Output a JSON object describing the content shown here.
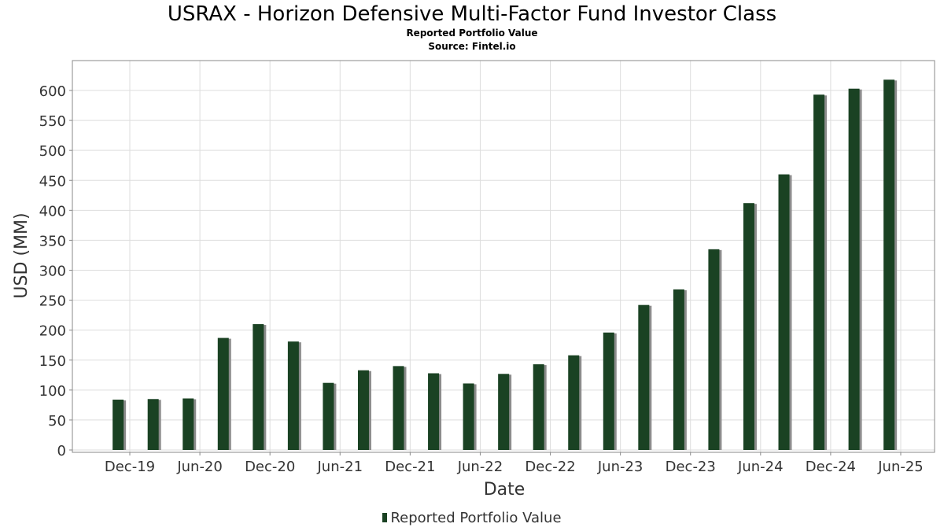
{
  "title": "USRAX - Horizon Defensive Multi-Factor Fund Investor Class",
  "subtitle": "Reported Portfolio Value",
  "source": "Source: Fintel.io",
  "colors": {
    "bar": "#1a4223",
    "bar_shadow": "#8c8c8c",
    "grid": "#dddddd",
    "axis": "#888888",
    "text": "#333333"
  },
  "chart_data": {
    "type": "bar",
    "title": "USRAX - Horizon Defensive Multi-Factor Fund Investor Class",
    "subtitle": "Reported Portfolio Value",
    "xlabel": "Date",
    "ylabel": "USD (MM)",
    "ylim": [
      0,
      650
    ],
    "yticks": [
      0,
      50,
      100,
      150,
      200,
      250,
      300,
      350,
      400,
      450,
      500,
      550,
      600
    ],
    "xticks": [
      "Dec-19",
      "Jun-20",
      "Dec-20",
      "Jun-21",
      "Dec-21",
      "Jun-22",
      "Dec-22",
      "Jun-23",
      "Dec-23",
      "Jun-24",
      "Dec-24",
      "Jun-25"
    ],
    "grid": true,
    "legend_position": "bottom",
    "series": [
      {
        "name": "Reported Portfolio Value",
        "x": [
          "2019-11",
          "2020-02",
          "2020-05",
          "2020-08",
          "2020-11",
          "2021-02",
          "2021-05",
          "2021-08",
          "2021-11",
          "2022-02",
          "2022-05",
          "2022-08",
          "2022-11",
          "2023-02",
          "2023-05",
          "2023-08",
          "2023-11",
          "2024-02",
          "2024-05",
          "2024-08",
          "2024-11",
          "2025-02",
          "2025-05"
        ],
        "values": [
          84,
          85,
          86,
          187,
          210,
          181,
          112,
          133,
          140,
          128,
          111,
          127,
          143,
          158,
          196,
          242,
          268,
          335,
          412,
          460,
          593,
          603,
          618
        ]
      }
    ]
  }
}
